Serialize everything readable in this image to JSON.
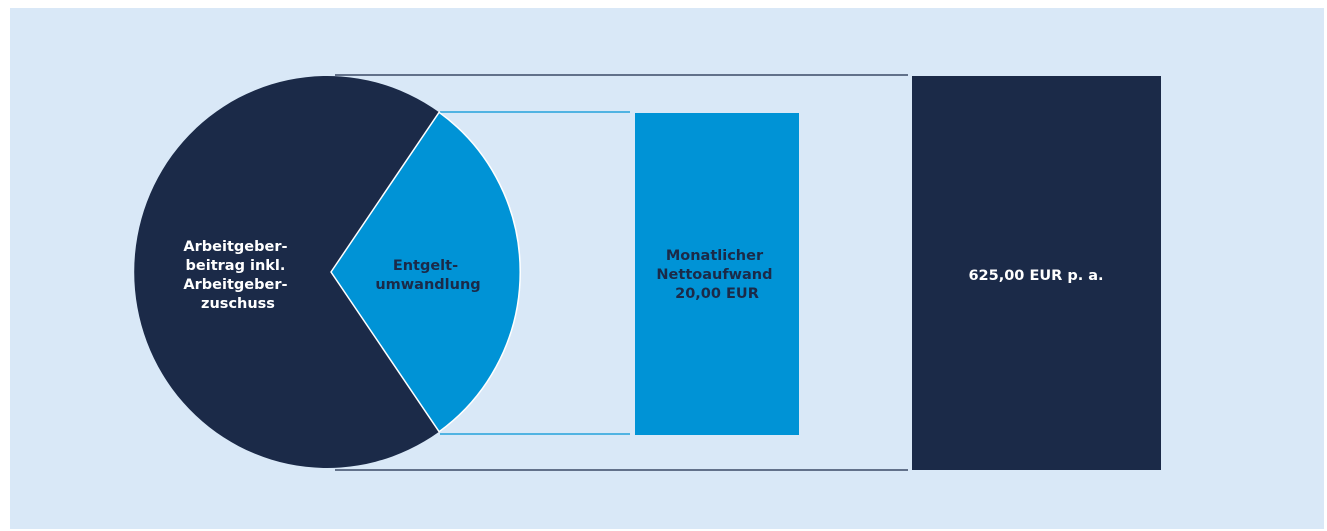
{
  "colors": {
    "background": "#d9e8f7",
    "dark": "#1b2a48",
    "light": "#0093d6",
    "dark_text": "#ffffff",
    "light_text": "#1b2a48"
  },
  "pie": {
    "large_segment": [
      "Arbeitgeber-",
      "beitrag inkl.",
      "Arbeitgeber-",
      "zuschuss"
    ],
    "small_segment": [
      "Entgelt-",
      "umwandlung"
    ]
  },
  "middle_box": [
    "Monatlicher",
    "Nettoaufwand",
    "20,00 EUR"
  ],
  "right_box": [
    "625,00 EUR p. a."
  ]
}
